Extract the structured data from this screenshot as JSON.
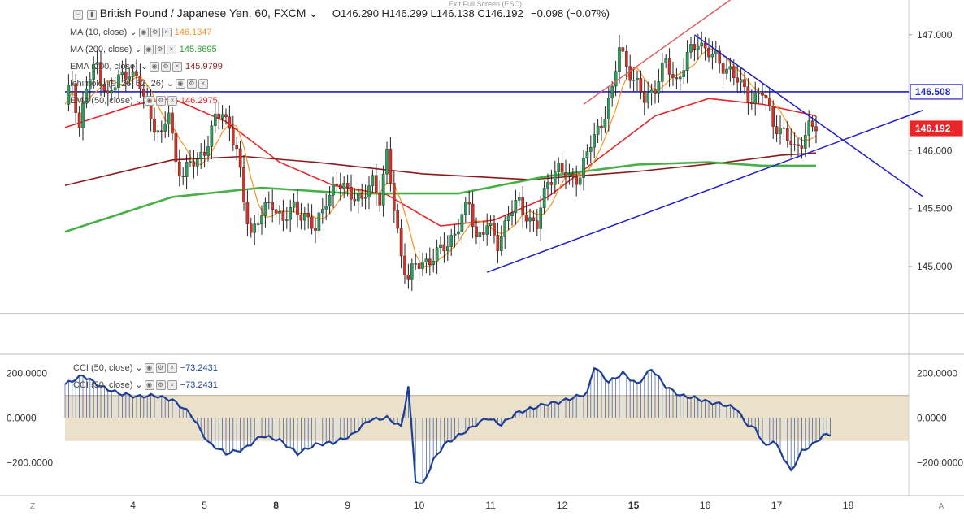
{
  "header": {
    "symbol": "British Pound / Japanese Yen, 60, FXCM",
    "ohlc": "O146.290 H146.299 L146.138 C146.192",
    "change": "−0.098 (−0.07%)",
    "exit_full_screen": "Exit Full Screen (ESC)"
  },
  "indicators": [
    {
      "label": "MA (10, close)",
      "value": "146.1347",
      "color": "#f7931e"
    },
    {
      "label": "MA (200, close)",
      "value": "145.8695",
      "color": "#2e9e2e"
    },
    {
      "label": "EMA (200, close)",
      "value": "145.9799",
      "color": "#8b1a1a"
    },
    {
      "label": "Ichimoku (9, 26, 52, 26)",
      "value": "",
      "color": "#444"
    },
    {
      "label": "EMA (50, close)",
      "value": "146.2975",
      "color": "#e8262a"
    }
  ],
  "cci_labels": [
    {
      "label": "CCI (50, close)",
      "value": "−73.2431",
      "color": "#1c3f95"
    },
    {
      "label": "CCI (50, close)",
      "value": "−73.2431",
      "color": "#1c3f95"
    }
  ],
  "price_tags": [
    {
      "value": "146.508",
      "color": "#1f1fd0",
      "text_color": "#1f1fd0",
      "bg": "#ffffff"
    },
    {
      "value": "146.192",
      "color": "#e8262a",
      "text_color": "#ffffff",
      "bg": "#e8262a"
    }
  ],
  "colors": {
    "up": "#2e9e5b",
    "down": "#d93025",
    "ma10": "#f7931e",
    "ma200": "#44b144",
    "ema200": "#8b1a1a",
    "ema50": "#e8262a",
    "trend": "#1f1fd0",
    "cci": "#1c3f95",
    "band": "#e8dcc2"
  },
  "chart_data": [
    {
      "type": "candlestick",
      "title": "British Pound / Japanese Yen, 60, FXCM",
      "x_tick_labels": [
        "4",
        "5",
        "8",
        "9",
        "10",
        "11",
        "12",
        "15",
        "16",
        "17",
        "18"
      ],
      "y_ticks": [
        145.0,
        145.5,
        146.0,
        146.5,
        147.0
      ],
      "y_tick_labels": [
        "145.000",
        "145.500",
        "146.000",
        "146.500",
        "147.000"
      ],
      "ylim": [
        144.6,
        147.3
      ],
      "last_close": 146.192,
      "horizontal_level": 146.508,
      "price_path": [
        [
          0,
          146.4
        ],
        [
          2,
          146.6
        ],
        [
          4,
          146.2
        ],
        [
          6,
          146.55
        ],
        [
          9,
          146.75
        ],
        [
          12,
          146.45
        ],
        [
          15,
          146.62
        ],
        [
          18,
          146.7
        ],
        [
          21,
          146.55
        ],
        [
          24,
          146.3
        ],
        [
          27,
          146.1
        ],
        [
          29,
          146.35
        ],
        [
          31,
          145.9
        ],
        [
          33,
          145.8
        ],
        [
          36,
          145.9
        ],
        [
          39,
          146.0
        ],
        [
          42,
          146.25
        ],
        [
          44,
          146.35
        ],
        [
          46,
          146.2
        ],
        [
          48,
          146.0
        ],
        [
          50,
          145.55
        ],
        [
          52,
          145.3
        ],
        [
          55,
          145.45
        ],
        [
          58,
          145.55
        ],
        [
          61,
          145.4
        ],
        [
          64,
          145.5
        ],
        [
          67,
          145.45
        ],
        [
          70,
          145.3
        ],
        [
          73,
          145.6
        ],
        [
          76,
          145.7
        ],
        [
          80,
          145.65
        ],
        [
          83,
          145.55
        ],
        [
          86,
          145.75
        ],
        [
          88,
          145.6
        ],
        [
          90,
          145.95
        ],
        [
          92,
          145.5
        ],
        [
          94,
          145.1
        ],
        [
          96,
          144.9
        ],
        [
          98,
          145.0
        ],
        [
          101,
          145.05
        ],
        [
          104,
          145.1
        ],
        [
          107,
          145.2
        ],
        [
          110,
          145.35
        ],
        [
          113,
          145.55
        ],
        [
          115,
          145.25
        ],
        [
          118,
          145.35
        ],
        [
          121,
          145.2
        ],
        [
          124,
          145.45
        ],
        [
          127,
          145.55
        ],
        [
          130,
          145.4
        ],
        [
          132,
          145.35
        ],
        [
          135,
          145.75
        ],
        [
          138,
          145.85
        ],
        [
          141,
          145.75
        ],
        [
          144,
          145.8
        ],
        [
          147,
          146.05
        ],
        [
          150,
          146.25
        ],
        [
          153,
          146.5
        ],
        [
          155,
          146.9
        ],
        [
          157,
          146.75
        ],
        [
          159,
          146.6
        ],
        [
          162,
          146.45
        ],
        [
          165,
          146.55
        ],
        [
          168,
          146.75
        ],
        [
          171,
          146.6
        ],
        [
          174,
          146.8
        ],
        [
          177,
          146.95
        ],
        [
          180,
          146.85
        ],
        [
          183,
          146.75
        ],
        [
          186,
          146.7
        ],
        [
          189,
          146.55
        ],
        [
          192,
          146.45
        ],
        [
          195,
          146.5
        ],
        [
          198,
          146.25
        ],
        [
          201,
          146.15
        ],
        [
          204,
          146.0
        ],
        [
          206,
          146.1
        ],
        [
          208,
          146.2
        ],
        [
          210,
          146.19
        ]
      ],
      "overlays": {
        "EMA (50, close)": [
          [
            0,
            146.2
          ],
          [
            20,
            146.4
          ],
          [
            30,
            146.45
          ],
          [
            45,
            146.25
          ],
          [
            60,
            145.9
          ],
          [
            75,
            145.7
          ],
          [
            90,
            145.62
          ],
          [
            105,
            145.35
          ],
          [
            120,
            145.4
          ],
          [
            135,
            145.6
          ],
          [
            150,
            145.95
          ],
          [
            165,
            146.3
          ],
          [
            180,
            146.45
          ],
          [
            195,
            146.4
          ],
          [
            210,
            146.3
          ]
        ],
        "EMA (200, close)": [
          [
            0,
            145.7
          ],
          [
            30,
            145.92
          ],
          [
            50,
            145.95
          ],
          [
            70,
            145.9
          ],
          [
            100,
            145.8
          ],
          [
            130,
            145.75
          ],
          [
            160,
            145.82
          ],
          [
            185,
            145.9
          ],
          [
            200,
            145.96
          ],
          [
            210,
            145.98
          ]
        ],
        "MA (200, close)": [
          [
            0,
            145.3
          ],
          [
            30,
            145.6
          ],
          [
            55,
            145.68
          ],
          [
            80,
            145.63
          ],
          [
            110,
            145.63
          ],
          [
            135,
            145.78
          ],
          [
            160,
            145.88
          ],
          [
            180,
            145.9
          ],
          [
            195,
            145.87
          ],
          [
            210,
            145.87
          ]
        ]
      },
      "trendlines": [
        {
          "color": "#1f1fd0",
          "points": [
            [
              118,
              144.95
            ],
            [
              240,
              146.35
            ]
          ]
        },
        {
          "color": "#1f1fd0",
          "points": [
            [
              176,
              147.0
            ],
            [
              240,
              145.6
            ]
          ]
        },
        {
          "color": "#e06060",
          "points": [
            [
              145,
              146.4
            ],
            [
              186,
              147.3
            ]
          ]
        }
      ]
    },
    {
      "type": "line",
      "title": "CCI (50, close)",
      "y_ticks": [
        -200,
        0,
        200
      ],
      "y_tick_labels": [
        "−200.0000",
        "0.0000",
        "200.0000"
      ],
      "ylim": [
        -330,
        270
      ],
      "band": [
        -100,
        100
      ],
      "series": [
        {
          "name": "CCI (50, close)",
          "last_value": -73.2431,
          "values": [
            [
              0,
              150
            ],
            [
              5,
              190
            ],
            [
              10,
              140
            ],
            [
              15,
              110
            ],
            [
              20,
              95
            ],
            [
              25,
              100
            ],
            [
              30,
              80
            ],
            [
              35,
              20
            ],
            [
              40,
              -110
            ],
            [
              45,
              -160
            ],
            [
              50,
              -140
            ],
            [
              55,
              -80
            ],
            [
              60,
              -100
            ],
            [
              65,
              -160
            ],
            [
              70,
              -120
            ],
            [
              75,
              -110
            ],
            [
              80,
              -80
            ],
            [
              85,
              -10
            ],
            [
              90,
              0
            ],
            [
              94,
              -40
            ],
            [
              96,
              140
            ],
            [
              98,
              -280
            ],
            [
              100,
              -300
            ],
            [
              103,
              -190
            ],
            [
              106,
              -120
            ],
            [
              110,
              -80
            ],
            [
              114,
              -40
            ],
            [
              118,
              0
            ],
            [
              122,
              -30
            ],
            [
              126,
              20
            ],
            [
              130,
              40
            ],
            [
              134,
              60
            ],
            [
              138,
              70
            ],
            [
              142,
              90
            ],
            [
              146,
              110
            ],
            [
              148,
              230
            ],
            [
              152,
              160
            ],
            [
              156,
              200
            ],
            [
              160,
              150
            ],
            [
              164,
              220
            ],
            [
              168,
              140
            ],
            [
              172,
              100
            ],
            [
              176,
              90
            ],
            [
              180,
              70
            ],
            [
              184,
              60
            ],
            [
              188,
              40
            ],
            [
              190,
              -20
            ],
            [
              193,
              -50
            ],
            [
              196,
              -130
            ],
            [
              198,
              -100
            ],
            [
              200,
              -150
            ],
            [
              203,
              -240
            ],
            [
              206,
              -150
            ],
            [
              209,
              -120
            ],
            [
              212,
              -80
            ],
            [
              214,
              -73
            ]
          ]
        }
      ]
    }
  ],
  "x_axis": {
    "labels": [
      "4",
      "5",
      "8",
      "9",
      "10",
      "11",
      "12",
      "15",
      "16",
      "17",
      "18"
    ],
    "corner_left": "Z",
    "corner_right": "A"
  }
}
